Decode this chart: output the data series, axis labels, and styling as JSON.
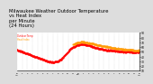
{
  "title": "Milwaukee Weather Outdoor Temperature\nvs Heat Index\nper Minute\n(24 Hours)",
  "title_fontsize": 3.8,
  "bg_color": "#dddddd",
  "plot_bg_color": "#ffffff",
  "line1_color": "#ff0000",
  "line2_color": "#ff9900",
  "line1_label": "Outdoor Temp",
  "line2_label": "Heat Index",
  "ylim_min": 10,
  "ylim_max": 90,
  "xlim_min": 0,
  "xlim_max": 1440,
  "grid_color": "#aaaaaa",
  "dot_size": 1.0,
  "right_axis_ticks": [
    10,
    20,
    30,
    40,
    50,
    60,
    70,
    80,
    90
  ],
  "temp_points_x": [
    0,
    30,
    60,
    90,
    120,
    150,
    180,
    210,
    240,
    270,
    300,
    330,
    360,
    390,
    420,
    450,
    480,
    510,
    540,
    570,
    600,
    630,
    660,
    690,
    720,
    750,
    780,
    810,
    840,
    870,
    900,
    930,
    960,
    990,
    1020,
    1050,
    1080,
    1110,
    1140,
    1170,
    1200,
    1230,
    1260,
    1290,
    1320,
    1350,
    1380,
    1410,
    1440
  ],
  "temp_points_y": [
    54,
    52,
    50,
    48,
    46,
    44,
    42,
    40,
    38,
    36,
    34,
    32,
    30,
    29,
    28,
    29,
    30,
    33,
    38,
    44,
    50,
    56,
    60,
    63,
    65,
    66,
    66,
    65,
    64,
    62,
    60,
    58,
    57,
    56,
    55,
    54,
    53,
    53,
    52,
    52,
    51,
    51,
    50,
    50,
    50,
    49,
    49,
    49,
    49
  ],
  "heat_points_x": [
    660,
    690,
    720,
    750,
    780,
    810,
    840,
    870,
    900,
    930,
    960,
    990,
    1020,
    1050,
    1080,
    1110,
    1140,
    1170,
    1200,
    1230,
    1260,
    1290,
    1320,
    1350,
    1380,
    1410,
    1440
  ],
  "heat_points_y": [
    66,
    68,
    70,
    71,
    71,
    70,
    69,
    68,
    67,
    65,
    64,
    63,
    62,
    61,
    60,
    59,
    58,
    57,
    57,
    56,
    55,
    55,
    54,
    54,
    53,
    53,
    53
  ],
  "hour_labels": [
    "12\nAm",
    "1",
    "2",
    "3",
    "4",
    "5",
    "6",
    "7",
    "8",
    "9",
    "10",
    "11",
    "12\nPm",
    "1",
    "2",
    "3",
    "4",
    "5",
    "6",
    "7",
    "8",
    "9",
    "10",
    "11",
    "12\nAm"
  ]
}
